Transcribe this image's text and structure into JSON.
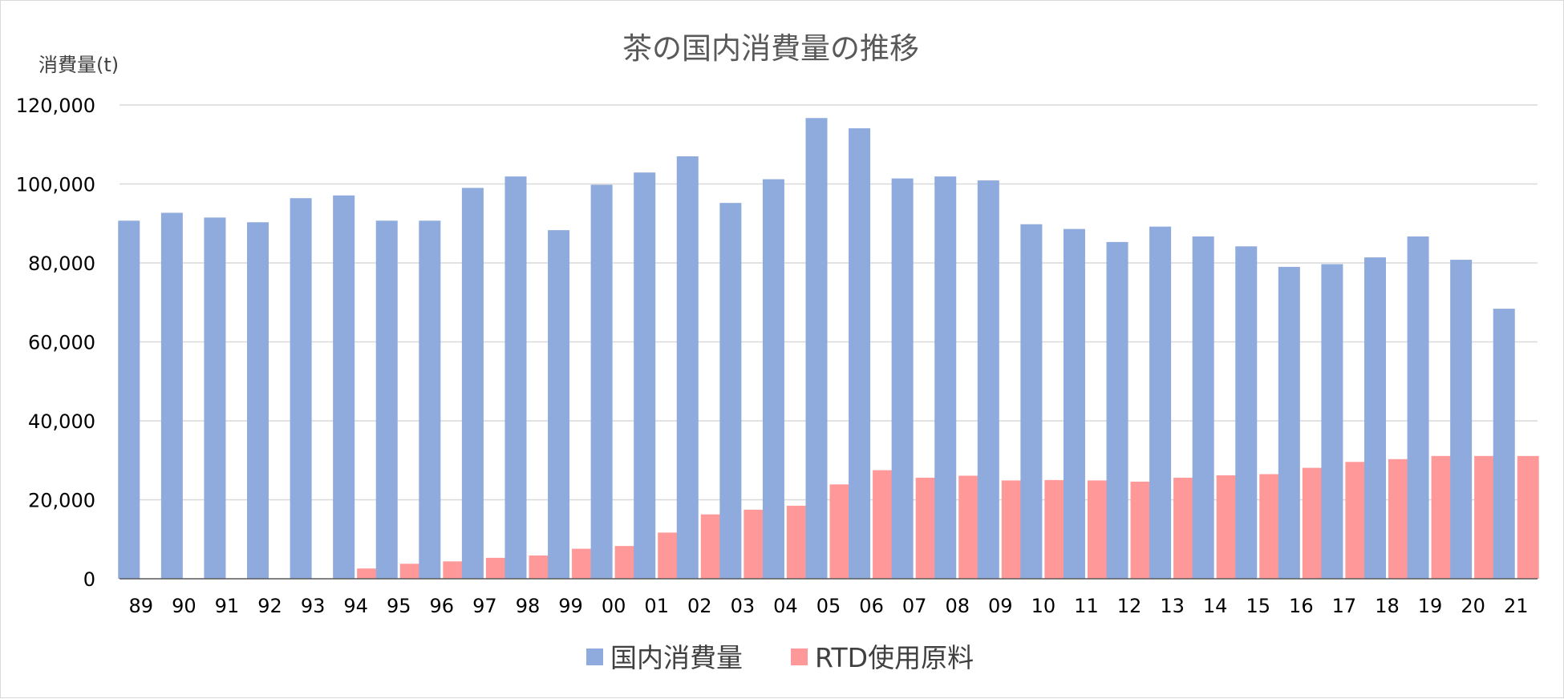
{
  "chart_data": {
    "type": "bar",
    "title": "茶の国内消費量の推移",
    "ylabel": "消費量(t)",
    "xlabel": "",
    "ylim": [
      0,
      120000
    ],
    "yticks": [
      0,
      20000,
      40000,
      60000,
      80000,
      100000,
      120000
    ],
    "ytick_labels": [
      "0",
      "20,000",
      "40,000",
      "60,000",
      "80,000",
      "100,000",
      "120,000"
    ],
    "categories": [
      "89",
      "90",
      "91",
      "92",
      "93",
      "94",
      "95",
      "96",
      "97",
      "98",
      "99",
      "00",
      "01",
      "02",
      "03",
      "04",
      "05",
      "06",
      "07",
      "08",
      "09",
      "10",
      "11",
      "12",
      "13",
      "14",
      "15",
      "16",
      "17",
      "18",
      "19",
      "20",
      "21"
    ],
    "series": [
      {
        "name": "国内消費量",
        "color": "#8faadc",
        "values": [
          90700,
          92700,
          91500,
          90300,
          96400,
          97100,
          90700,
          90700,
          99000,
          101900,
          88300,
          99800,
          102900,
          107000,
          95200,
          101200,
          116700,
          114100,
          101400,
          101900,
          100900,
          89800,
          88600,
          85300,
          89200,
          86700,
          84200,
          79000,
          79700,
          81400,
          86700,
          80800,
          68400
        ]
      },
      {
        "name": "RTD使用原料",
        "color": "#ff9999",
        "values": [
          0,
          0,
          0,
          0,
          0,
          2600,
          3800,
          4400,
          5300,
          5900,
          7600,
          8300,
          11700,
          16300,
          17500,
          18500,
          23900,
          27500,
          25600,
          26100,
          24900,
          25000,
          24900,
          24600,
          25600,
          26200,
          26500,
          28100,
          29600,
          30300,
          31100,
          31100,
          31100
        ]
      }
    ],
    "grid": true,
    "legend_position": "bottom"
  }
}
